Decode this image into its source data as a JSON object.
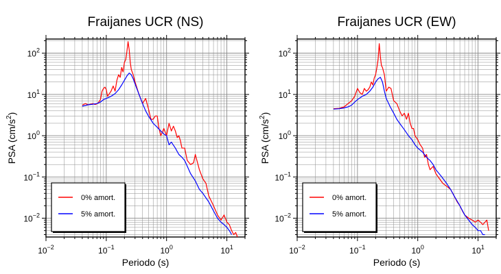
{
  "chart_data": [
    {
      "type": "line",
      "title": "Fraijanes UCR (NS)",
      "xlabel": "Periodo (s)",
      "ylabel_main": "PSA (cm/s",
      "ylabel_sup": "2",
      "ylabel_end": ")",
      "x_scale": "log",
      "y_scale": "log",
      "xlim": [
        0.01,
        20
      ],
      "ylim": [
        0.0035,
        220
      ],
      "grid": true,
      "legend_position": "bottom-left",
      "x_ticks": [
        {
          "value": 0.01,
          "base": "10",
          "exp": "−2"
        },
        {
          "value": 0.1,
          "base": "10",
          "exp": "−1"
        },
        {
          "value": 1,
          "base": "10",
          "exp": "0"
        },
        {
          "value": 10,
          "base": "10",
          "exp": "1"
        }
      ],
      "y_ticks": [
        {
          "value": 0.01,
          "base": "10",
          "exp": "−2"
        },
        {
          "value": 0.1,
          "base": "10",
          "exp": "−1"
        },
        {
          "value": 1,
          "base": "10",
          "exp": "0"
        },
        {
          "value": 10,
          "base": "10",
          "exp": "1"
        },
        {
          "value": 100,
          "base": "10",
          "exp": "2"
        }
      ],
      "series": [
        {
          "name": "0% amort.",
          "color": "#ff0000",
          "x": [
            0.04,
            0.045,
            0.05,
            0.055,
            0.06,
            0.065,
            0.07,
            0.075,
            0.08,
            0.085,
            0.09,
            0.095,
            0.1,
            0.105,
            0.11,
            0.12,
            0.13,
            0.14,
            0.15,
            0.16,
            0.17,
            0.18,
            0.19,
            0.2,
            0.21,
            0.22,
            0.23,
            0.24,
            0.25,
            0.26,
            0.28,
            0.3,
            0.35,
            0.4,
            0.45,
            0.5,
            0.55,
            0.6,
            0.65,
            0.7,
            0.75,
            0.8,
            0.85,
            0.9,
            1.0,
            1.1,
            1.2,
            1.3,
            1.4,
            1.5,
            1.6,
            1.7,
            1.8,
            2.0,
            2.2,
            2.5,
            2.8,
            3.0,
            3.5,
            4.0,
            4.5,
            5.0,
            6.0,
            7.0,
            8.0,
            9.0,
            10,
            11,
            12,
            13,
            14,
            15
          ],
          "y": [
            5.5,
            6.0,
            5.6,
            5.8,
            6.0,
            5.7,
            5.9,
            6.5,
            7.5,
            12,
            14,
            15,
            13,
            9,
            10,
            12,
            16,
            12,
            22,
            30,
            26,
            45,
            35,
            60,
            70,
            110,
            190,
            120,
            60,
            40,
            30,
            20,
            10,
            6,
            8,
            4.5,
            2.5,
            2.5,
            3.0,
            3.0,
            1.5,
            1.0,
            1.2,
            1.5,
            1.0,
            2.0,
            1.3,
            1.7,
            1.3,
            0.9,
            1.0,
            0.75,
            0.5,
            0.5,
            0.25,
            0.2,
            0.22,
            0.35,
            0.15,
            0.09,
            0.07,
            0.035,
            0.02,
            0.012,
            0.009,
            0.012,
            0.008,
            0.007,
            0.005,
            0.004,
            0.0045,
            0.0035
          ]
        },
        {
          "name": "5% amort.",
          "color": "#0000ff",
          "x": [
            0.04,
            0.05,
            0.06,
            0.07,
            0.08,
            0.09,
            0.1,
            0.12,
            0.14,
            0.16,
            0.18,
            0.2,
            0.22,
            0.24,
            0.26,
            0.28,
            0.3,
            0.35,
            0.4,
            0.45,
            0.5,
            0.6,
            0.7,
            0.8,
            0.9,
            1.0,
            1.1,
            1.2,
            1.4,
            1.6,
            1.8,
            2.0,
            2.5,
            3.0,
            3.5,
            4.0,
            5.0,
            6.0,
            7.0,
            8.0,
            9.0,
            10,
            11,
            12
          ],
          "y": [
            5.2,
            5.6,
            5.8,
            6.0,
            6.5,
            7.5,
            8.0,
            9.0,
            10.5,
            13,
            17,
            22,
            28,
            33,
            30,
            24,
            18,
            10,
            6.0,
            4.0,
            3.0,
            2.0,
            1.6,
            1.3,
            1.1,
            1.0,
            0.6,
            0.7,
            0.5,
            0.35,
            0.3,
            0.25,
            0.12,
            0.08,
            0.05,
            0.04,
            0.025,
            0.015,
            0.01,
            0.008,
            0.007,
            0.006,
            0.005,
            0.004
          ]
        }
      ]
    },
    {
      "type": "line",
      "title": "Fraijanes UCR (EW)",
      "xlabel": "Periodo (s)",
      "ylabel_main": "PSA (cm/s",
      "ylabel_sup": "2",
      "ylabel_end": ")",
      "x_scale": "log",
      "y_scale": "log",
      "xlim": [
        0.01,
        20
      ],
      "ylim": [
        0.0035,
        220
      ],
      "grid": true,
      "legend_position": "bottom-left",
      "x_ticks": [
        {
          "value": 0.01,
          "base": "10",
          "exp": "−2"
        },
        {
          "value": 0.1,
          "base": "10",
          "exp": "−1"
        },
        {
          "value": 1,
          "base": "10",
          "exp": "0"
        },
        {
          "value": 10,
          "base": "10",
          "exp": "1"
        }
      ],
      "y_ticks": [
        {
          "value": 0.01,
          "base": "10",
          "exp": "−2"
        },
        {
          "value": 0.1,
          "base": "10",
          "exp": "−1"
        },
        {
          "value": 1,
          "base": "10",
          "exp": "0"
        },
        {
          "value": 10,
          "base": "10",
          "exp": "1"
        },
        {
          "value": 100,
          "base": "10",
          "exp": "2"
        }
      ],
      "series": [
        {
          "name": "0% amort.",
          "color": "#ff0000",
          "x": [
            0.04,
            0.05,
            0.06,
            0.07,
            0.08,
            0.09,
            0.1,
            0.11,
            0.12,
            0.13,
            0.14,
            0.15,
            0.16,
            0.17,
            0.18,
            0.19,
            0.2,
            0.21,
            0.22,
            0.23,
            0.24,
            0.25,
            0.26,
            0.28,
            0.3,
            0.33,
            0.36,
            0.4,
            0.45,
            0.5,
            0.55,
            0.6,
            0.65,
            0.7,
            0.75,
            0.8,
            0.85,
            0.9,
            1.0,
            1.1,
            1.2,
            1.3,
            1.4,
            1.5,
            1.6,
            1.8,
            2.0,
            2.3,
            2.6,
            3.0,
            3.5,
            4.0,
            4.5,
            5.0,
            5.5,
            6.0,
            7.0,
            8.0,
            9.0,
            10,
            11,
            12,
            13,
            14,
            15
          ],
          "y": [
            4.5,
            4.6,
            5.0,
            6.0,
            7.0,
            9.0,
            14,
            11,
            10,
            14,
            12,
            13,
            15,
            20,
            17,
            25,
            30,
            45,
            70,
            170,
            80,
            50,
            45,
            30,
            12,
            15,
            14,
            7,
            6,
            4,
            3.0,
            3.5,
            2.5,
            3.5,
            2.0,
            1.5,
            1.5,
            1.0,
            0.8,
            0.6,
            0.5,
            0.3,
            0.35,
            0.2,
            0.15,
            0.18,
            0.12,
            0.09,
            0.07,
            0.06,
            0.05,
            0.035,
            0.025,
            0.02,
            0.015,
            0.012,
            0.01,
            0.009,
            0.008,
            0.009,
            0.008,
            0.007,
            0.008,
            0.009,
            0.005
          ]
        },
        {
          "name": "5% amort.",
          "color": "#0000ff",
          "x": [
            0.04,
            0.05,
            0.06,
            0.07,
            0.08,
            0.09,
            0.1,
            0.12,
            0.14,
            0.16,
            0.18,
            0.2,
            0.22,
            0.24,
            0.26,
            0.28,
            0.3,
            0.35,
            0.4,
            0.45,
            0.5,
            0.6,
            0.7,
            0.8,
            0.9,
            1.0,
            1.2,
            1.4,
            1.6,
            1.8,
            2.0,
            2.5,
            3.0,
            3.5,
            4.0,
            5.0,
            6.0,
            7.0,
            8.0,
            9.0,
            10,
            11,
            12,
            13
          ],
          "y": [
            4.4,
            4.5,
            4.7,
            5.0,
            5.5,
            6.5,
            7.5,
            9.0,
            10,
            12,
            15,
            20,
            24,
            26,
            20,
            12,
            8,
            5.0,
            3.5,
            2.5,
            2.0,
            1.4,
            1.0,
            0.8,
            0.6,
            0.5,
            0.4,
            0.3,
            0.25,
            0.2,
            0.15,
            0.1,
            0.07,
            0.05,
            0.035,
            0.02,
            0.012,
            0.009,
            0.007,
            0.006,
            0.005,
            0.005,
            0.004,
            0.004
          ]
        }
      ]
    }
  ]
}
